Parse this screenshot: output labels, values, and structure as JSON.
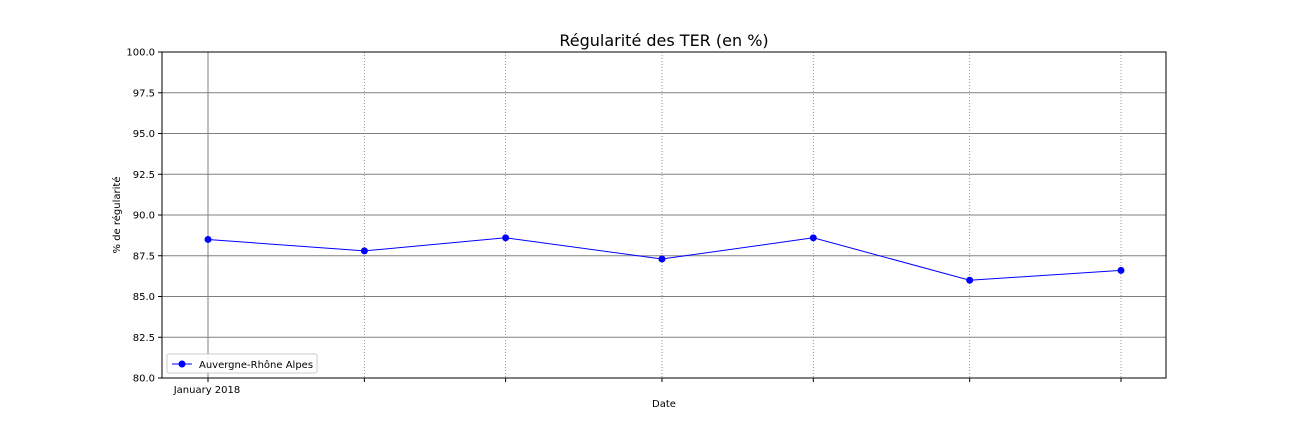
{
  "chart_data": {
    "type": "line",
    "title": "Régularité des TER (en %)",
    "xlabel": "Date",
    "ylabel": "% de régularité",
    "x": [
      "2018-01",
      "2018-02",
      "2018-03",
      "2018-04",
      "2018-05",
      "2018-06",
      "2018-07"
    ],
    "x_tick_labels": [
      "January 2018",
      "",
      "",
      "",
      "",
      "",
      ""
    ],
    "series": [
      {
        "name": "Auvergne-Rhône Alpes",
        "values": [
          88.5,
          87.8,
          88.6,
          87.3,
          88.6,
          86.0,
          86.6
        ],
        "color": "#0000ff",
        "marker": "circle"
      }
    ],
    "ylim": [
      80.0,
      100.0
    ],
    "y_ticks": [
      "80.0",
      "82.5",
      "85.0",
      "87.5",
      "90.0",
      "92.5",
      "95.0",
      "97.5",
      "100.0"
    ],
    "grid": true,
    "legend_position": "lower-left"
  }
}
